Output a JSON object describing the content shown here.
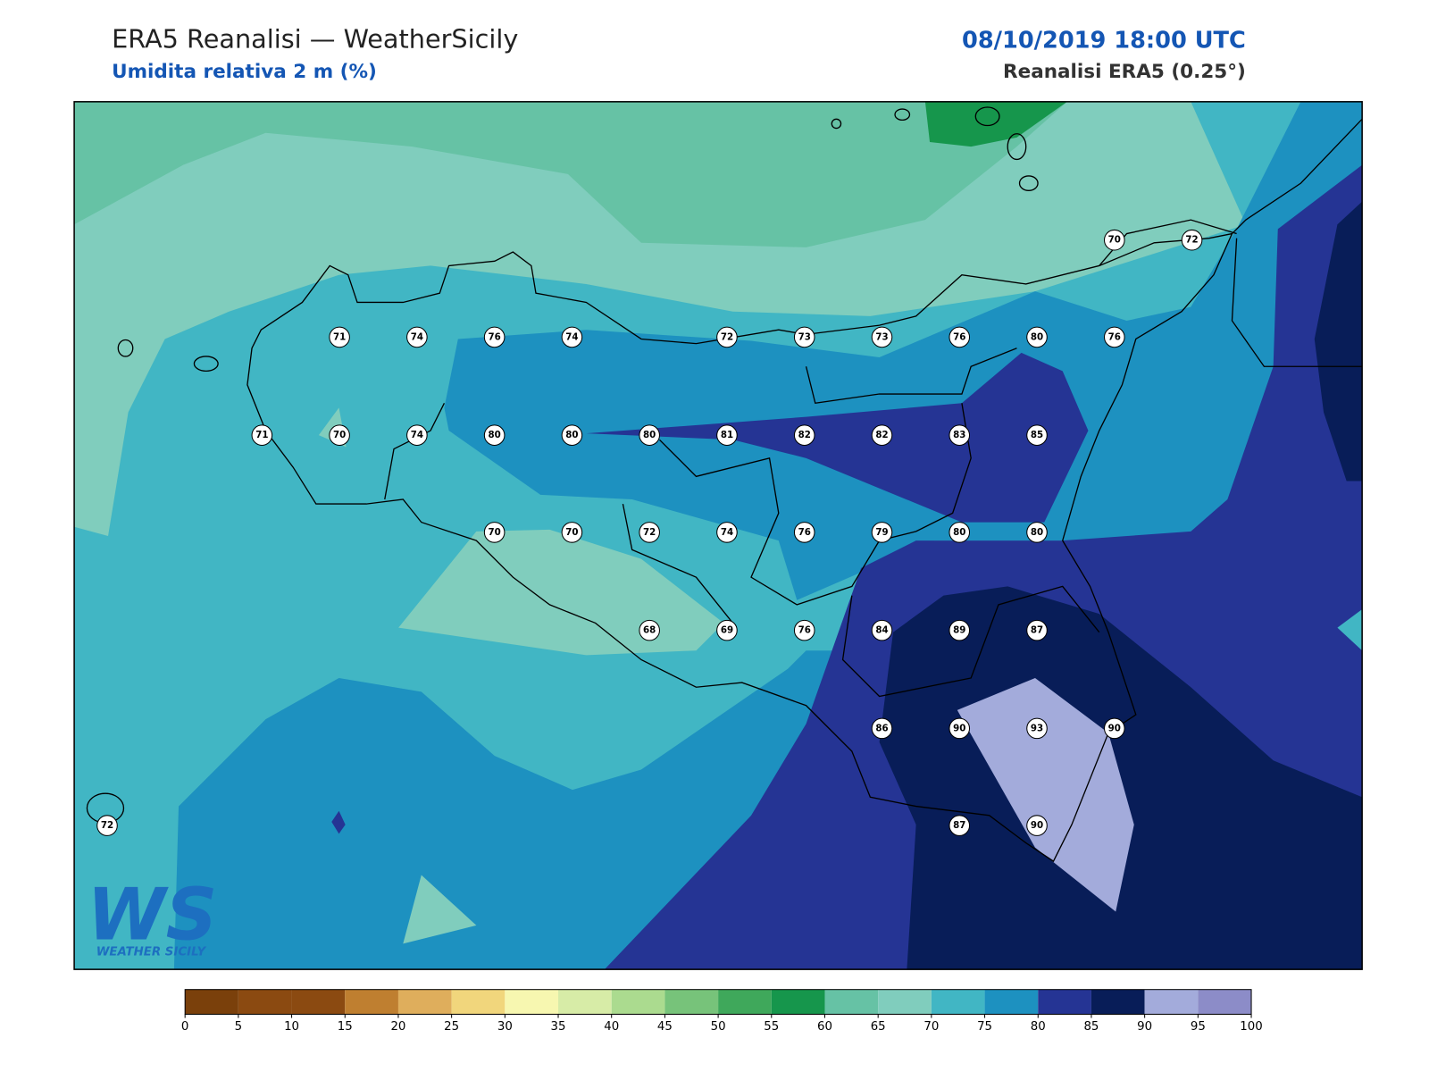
{
  "header": {
    "title": "ERA5 Reanalisi — WeatherSicily",
    "subtitle": "Umidita relativa 2 m (%)",
    "date": "08/10/2019 18:00 UTC",
    "source": "Reanalisi ERA5 (0.25°)"
  },
  "stations": [
    70,
    72,
    71,
    74,
    76,
    74,
    72,
    73,
    73,
    76,
    80,
    76,
    71,
    70,
    74,
    80,
    80,
    80,
    81,
    82,
    82,
    83,
    85,
    70,
    70,
    72,
    74,
    76,
    79,
    80,
    80,
    68,
    69,
    76,
    84,
    89,
    87,
    86,
    90,
    93,
    90,
    72,
    87,
    90
  ],
  "colorbar": {
    "ticks": [
      0,
      5,
      10,
      15,
      20,
      25,
      30,
      35,
      40,
      45,
      50,
      55,
      60,
      65,
      70,
      75,
      80,
      85,
      90,
      95,
      100
    ],
    "colors": [
      "#7a400b",
      "#8b4a11",
      "#8b4a11",
      "#bf7f30",
      "#dfae5c",
      "#f1d67c",
      "#f7f7b0",
      "#d7eca7",
      "#abdb8f",
      "#77c37a",
      "#3fa85b",
      "#16964c",
      "#66c2a5",
      "#80cdbd",
      "#41b6c4",
      "#1d91c0",
      "#253494",
      "#081d58",
      "#a3abdb",
      "#8c8cc8"
    ]
  },
  "logo": {
    "mark": "WS",
    "text": "WEATHER SICILY"
  }
}
